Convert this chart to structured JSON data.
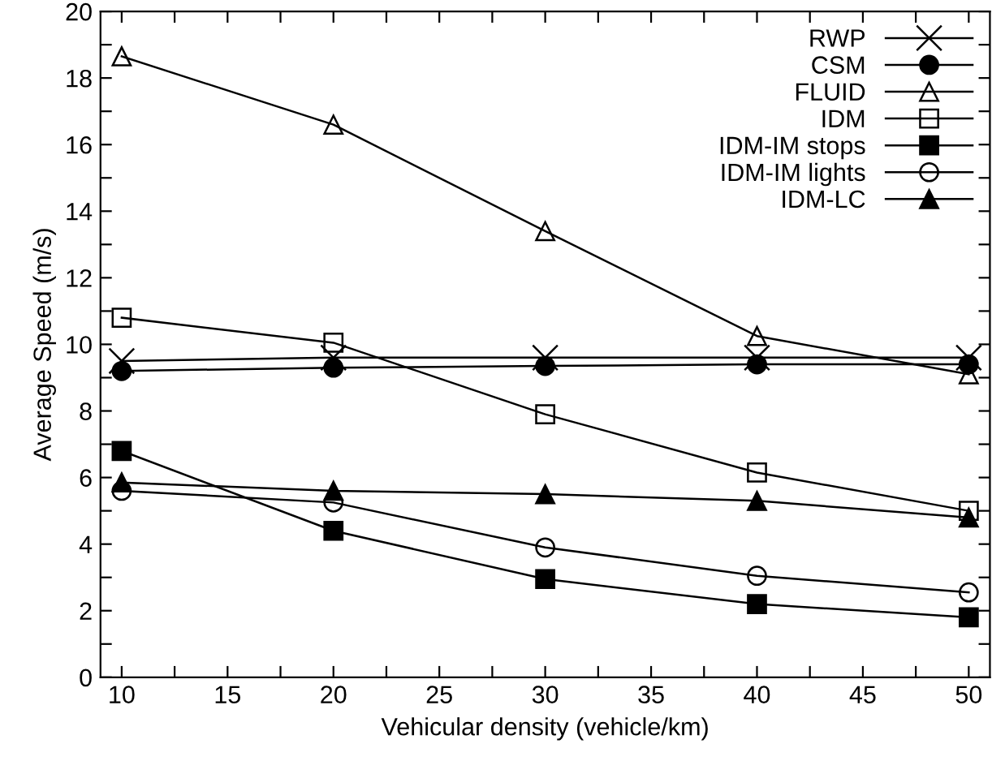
{
  "chart_data": {
    "type": "line",
    "xlabel": "Vehicular density (vehicle/km)",
    "ylabel": "Average Speed (m/s)",
    "x": [
      10,
      20,
      30,
      40,
      50
    ],
    "xlim": [
      9,
      51
    ],
    "xticks": [
      10,
      {
        "value": 12.5,
        "label": null
      },
      15,
      {
        "value": 17.5,
        "label": null
      },
      20,
      {
        "value": 22.5,
        "label": null
      },
      25,
      {
        "value": 27.5,
        "label": null
      },
      30,
      {
        "value": 32.5,
        "label": null
      },
      35,
      {
        "value": 37.5,
        "label": null
      },
      40,
      {
        "value": 42.5,
        "label": null
      },
      45,
      {
        "value": 47.5,
        "label": null
      },
      50
    ],
    "ylim": [
      0,
      20
    ],
    "yticks": [
      0,
      {
        "value": 1,
        "label": null
      },
      2,
      {
        "value": 3,
        "label": null
      },
      4,
      {
        "value": 5,
        "label": null
      },
      6,
      {
        "value": 7,
        "label": null
      },
      8,
      {
        "value": 9,
        "label": null
      },
      10,
      {
        "value": 11,
        "label": null
      },
      12,
      {
        "value": 13,
        "label": null
      },
      14,
      {
        "value": 15,
        "label": null
      },
      16,
      {
        "value": 17,
        "label": null
      },
      18,
      {
        "value": 19,
        "label": null
      },
      20
    ],
    "legend": "top right",
    "grid": false,
    "line_style": "solid",
    "series": [
      {
        "name": "RWP",
        "color": "#000000",
        "marker": "cross",
        "values": [
          9.5,
          9.6,
          9.6,
          9.6,
          9.6
        ]
      },
      {
        "name": "CSM",
        "color": "#000000",
        "marker": "circle",
        "values": [
          9.2,
          9.3,
          9.35,
          9.4,
          9.4
        ]
      },
      {
        "name": "FLUID",
        "color": "#000000",
        "marker": "triangle",
        "values": [
          18.65,
          16.6,
          13.4,
          10.25,
          9.1
        ]
      },
      {
        "name": "IDM",
        "color": "#000000",
        "marker": "square",
        "values": [
          10.8,
          10.05,
          7.9,
          6.15,
          5.0
        ]
      },
      {
        "name": "IDM-IM stops",
        "color": "#000000",
        "marker": "square",
        "values": [
          6.8,
          4.4,
          2.95,
          2.2,
          1.8
        ]
      },
      {
        "name": "IDM-IM lights",
        "color": "#000000",
        "marker": "circle",
        "values": [
          5.6,
          5.25,
          3.9,
          3.05,
          2.55
        ]
      },
      {
        "name": "IDM-LC",
        "color": "#000000",
        "marker": "triangle",
        "values": [
          5.85,
          5.6,
          5.5,
          5.3,
          4.8
        ]
      }
    ]
  }
}
